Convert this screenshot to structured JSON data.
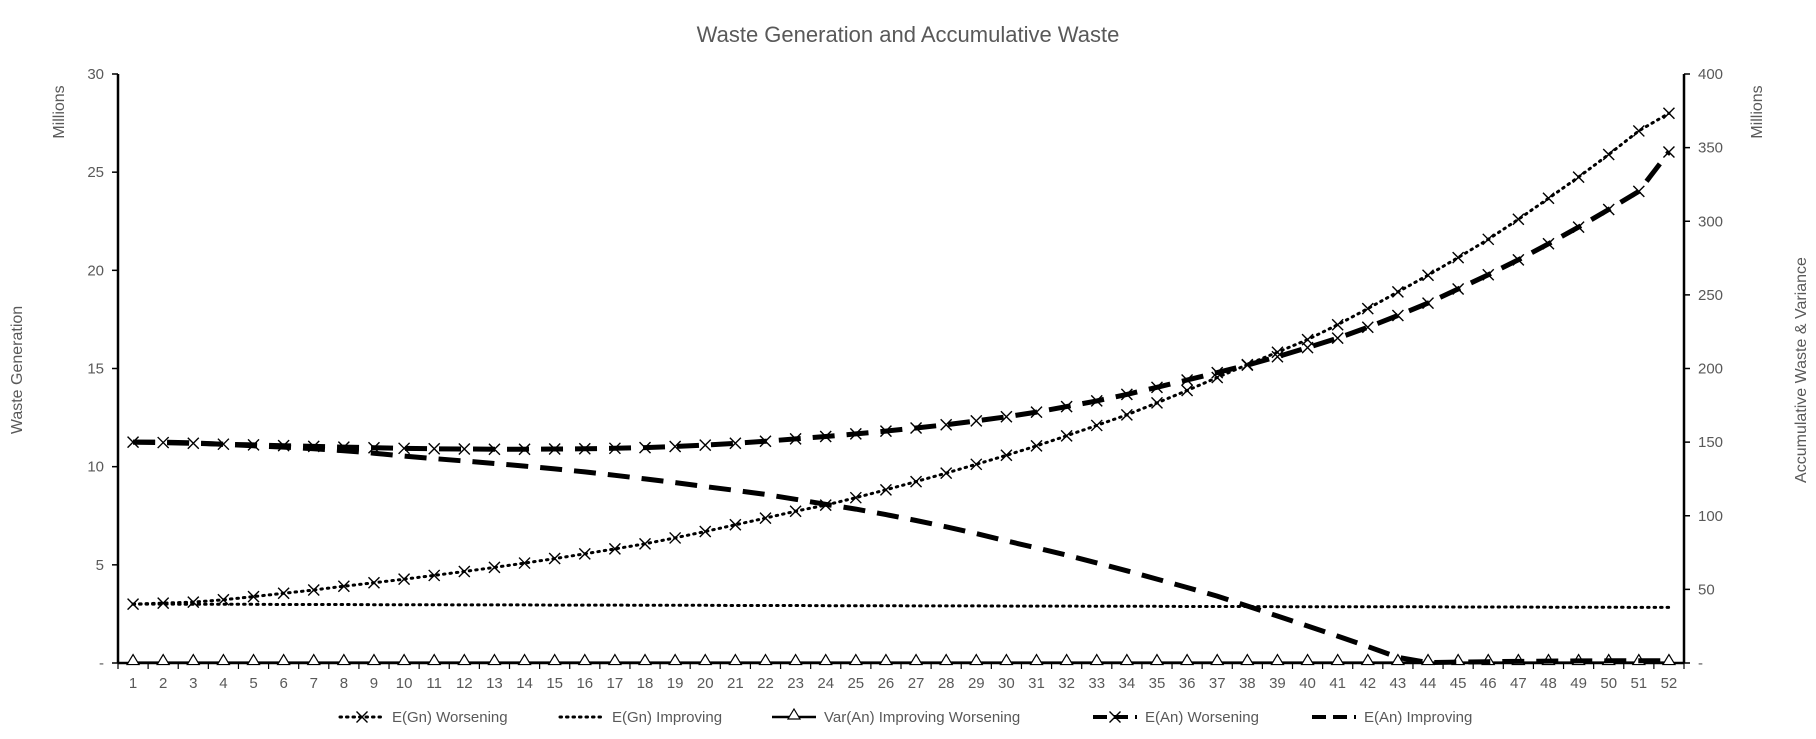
{
  "chart_data": {
    "type": "line",
    "title": "Waste Generation and Accumulative Waste",
    "y_left": {
      "label": "Waste Generation",
      "unit": "Millions",
      "min": 0,
      "max": 30,
      "step": 5,
      "ticks": [
        "-",
        "5",
        "10",
        "15",
        "20",
        "25",
        "30"
      ]
    },
    "y_right": {
      "label": "Accumulative Waste & Variance",
      "unit": "Millions",
      "min": 0,
      "max": 400,
      "step": 50,
      "ticks": [
        "-",
        "50",
        "100",
        "150",
        "200",
        "250",
        "300",
        "350",
        "400"
      ]
    },
    "x": [
      1,
      2,
      3,
      4,
      5,
      6,
      7,
      8,
      9,
      10,
      11,
      12,
      13,
      14,
      15,
      16,
      17,
      18,
      19,
      20,
      21,
      22,
      23,
      24,
      25,
      26,
      27,
      28,
      29,
      30,
      31,
      32,
      33,
      34,
      35,
      36,
      37,
      38,
      39,
      40,
      41,
      42,
      43,
      44,
      45,
      46,
      47,
      48,
      49,
      50,
      51,
      52
    ],
    "legend_position": "bottom",
    "grid": false,
    "series": [
      {
        "name": "E(Gn) Worsening",
        "axis": "left",
        "style": "dotted",
        "marker": "x",
        "values": [
          3.0,
          3.05,
          3.1,
          3.22,
          3.38,
          3.55,
          3.72,
          3.91,
          4.09,
          4.27,
          4.46,
          4.66,
          4.87,
          5.09,
          5.32,
          5.56,
          5.81,
          6.07,
          6.37,
          6.7,
          7.04,
          7.38,
          7.73,
          8.04,
          8.42,
          8.82,
          9.24,
          9.67,
          10.12,
          10.58,
          11.06,
          11.57,
          12.1,
          12.64,
          13.25,
          13.88,
          14.54,
          15.2,
          15.83,
          16.47,
          17.23,
          18.05,
          18.9,
          19.75,
          20.65,
          21.58,
          22.6,
          23.67,
          24.75,
          25.9,
          27.1,
          28.0
        ]
      },
      {
        "name": "E(Gn) Improving",
        "axis": "left",
        "style": "dotted",
        "marker": "none",
        "values": [
          3.0,
          3.0,
          2.99,
          2.99,
          2.99,
          2.98,
          2.98,
          2.98,
          2.97,
          2.97,
          2.97,
          2.96,
          2.96,
          2.96,
          2.95,
          2.95,
          2.95,
          2.94,
          2.94,
          2.94,
          2.93,
          2.93,
          2.93,
          2.92,
          2.92,
          2.92,
          2.91,
          2.91,
          2.91,
          2.9,
          2.9,
          2.9,
          2.89,
          2.89,
          2.89,
          2.88,
          2.88,
          2.88,
          2.87,
          2.87,
          2.87,
          2.86,
          2.86,
          2.86,
          2.85,
          2.85,
          2.85,
          2.84,
          2.84,
          2.84,
          2.83,
          2.83
        ]
      },
      {
        "name": "Var(An) Improving Worsening",
        "axis": "right",
        "style": "solid",
        "marker": "triangle",
        "values": [
          0.3,
          0.3,
          0.3,
          0.3,
          0.3,
          0.3,
          0.3,
          0.3,
          0.3,
          0.3,
          0.3,
          0.3,
          0.3,
          0.3,
          0.3,
          0.3,
          0.3,
          0.3,
          0.3,
          0.3,
          0.3,
          0.3,
          0.3,
          0.3,
          0.3,
          0.3,
          0.3,
          0.3,
          0.3,
          0.3,
          0.3,
          0.3,
          0.3,
          0.3,
          0.3,
          0.3,
          0.3,
          0.3,
          0.3,
          0.3,
          0.3,
          0.3,
          0.3,
          0.3,
          0.3,
          0.3,
          0.3,
          0.3,
          0.3,
          0.3,
          0.3,
          0.3
        ]
      },
      {
        "name": "E(An) Worsening",
        "axis": "right",
        "style": "dashed",
        "marker": "x",
        "values": [
          150,
          149.7,
          149.2,
          148.6,
          148.1,
          147.6,
          147.1,
          146.6,
          146.2,
          145.8,
          145.5,
          145.3,
          145.2,
          145.2,
          145.3,
          145.5,
          145.8,
          146.3,
          147.0,
          148.0,
          149.2,
          150.6,
          152.2,
          153.8,
          155.6,
          157.5,
          159.6,
          161.8,
          164.4,
          167.2,
          170.4,
          174.1,
          178.0,
          182.4,
          187.2,
          192.2,
          197.2,
          202.3,
          208.0,
          214.2,
          220.6,
          228.0,
          236.0,
          244.4,
          254.0,
          263.7,
          273.8,
          284.7,
          296.0,
          308.0,
          320.3,
          347.0
        ]
      },
      {
        "name": "E(An) Improving",
        "axis": "right",
        "style": "dashed",
        "marker": "none",
        "values": [
          150,
          150,
          149.5,
          148.5,
          147.5,
          146.6,
          145.5,
          144.2,
          142.5,
          140.5,
          138.8,
          137.2,
          135.5,
          133.7,
          131.8,
          129.8,
          127.5,
          125.0,
          122.5,
          119.8,
          117.2,
          114.5,
          111.2,
          107.8,
          104.5,
          100.8,
          96.8,
          92.5,
          87.9,
          82.9,
          78.2,
          73.3,
          68.0,
          62.6,
          57.0,
          51.3,
          45.4,
          38.7,
          31.9,
          25.1,
          18.3,
          11.2,
          3.8,
          0.3,
          0.6,
          0.9,
          1.1,
          1.3,
          1.4,
          1.5,
          1.5,
          1.5
        ]
      }
    ]
  }
}
